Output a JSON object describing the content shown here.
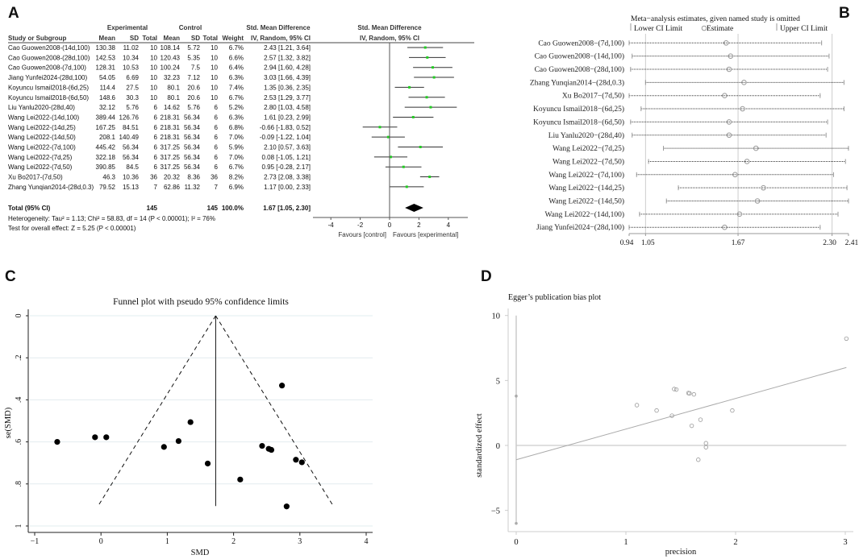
{
  "panels": {
    "a": "A",
    "b": "B",
    "c": "C",
    "d": "D"
  },
  "chart_data": [
    {
      "type": "forest",
      "headers": {
        "group_experimental": "Experimental",
        "group_control": "Control",
        "group_smd": "Std. Mean Difference",
        "study": "Study or Subgroup",
        "mean": "Mean",
        "sd": "SD",
        "total": "Total",
        "weight": "Weight",
        "method": "IV, Random, 95% CI",
        "plot_title": "Std. Mean Difference",
        "plot_method": "IV, Random, 95% CI"
      },
      "studies": [
        {
          "study": "Cao Guowen2008-(14d,100)",
          "e_mean": "130.38",
          "e_sd": "11.02",
          "e_n": "10",
          "c_mean": "108.14",
          "c_sd": "5.72",
          "c_n": "10",
          "weight": "6.7%",
          "ci_text": "2.43 [1.21, 3.64]",
          "est": 2.43,
          "lo": 1.21,
          "hi": 3.64
        },
        {
          "study": "Cao Guowen2008-(28d,100)",
          "e_mean": "142.53",
          "e_sd": "10.34",
          "e_n": "10",
          "c_mean": "120.43",
          "c_sd": "5.35",
          "c_n": "10",
          "weight": "6.6%",
          "ci_text": "2.57 [1.32, 3.82]",
          "est": 2.57,
          "lo": 1.32,
          "hi": 3.82
        },
        {
          "study": "Cao Guowen2008-(7d,100)",
          "e_mean": "128.31",
          "e_sd": "10.53",
          "e_n": "10",
          "c_mean": "100.24",
          "c_sd": "7.5",
          "c_n": "10",
          "weight": "6.4%",
          "ci_text": "2.94 [1.60, 4.28]",
          "est": 2.94,
          "lo": 1.6,
          "hi": 4.28
        },
        {
          "study": "Jiang Yunfei2024-(28d,100)",
          "e_mean": "54.05",
          "e_sd": "6.69",
          "e_n": "10",
          "c_mean": "32.23",
          "c_sd": "7.12",
          "c_n": "10",
          "weight": "6.3%",
          "ci_text": "3.03 [1.66, 4.39]",
          "est": 3.03,
          "lo": 1.66,
          "hi": 4.39
        },
        {
          "study": "Koyuncu Ismail2018-(6d,25)",
          "e_mean": "114.4",
          "e_sd": "27.5",
          "e_n": "10",
          "c_mean": "80.1",
          "c_sd": "20.6",
          "c_n": "10",
          "weight": "7.4%",
          "ci_text": "1.35 [0.36, 2.35]",
          "est": 1.35,
          "lo": 0.36,
          "hi": 2.35
        },
        {
          "study": "Koyuncu Ismail2018-(6d,50)",
          "e_mean": "148.6",
          "e_sd": "30.3",
          "e_n": "10",
          "c_mean": "80.1",
          "c_sd": "20.6",
          "c_n": "10",
          "weight": "6.7%",
          "ci_text": "2.53 [1.29, 3.77]",
          "est": 2.53,
          "lo": 1.29,
          "hi": 3.77
        },
        {
          "study": "Liu Yanlu2020-(28d,40)",
          "e_mean": "32.12",
          "e_sd": "5.76",
          "e_n": "6",
          "c_mean": "14.62",
          "c_sd": "5.76",
          "c_n": "6",
          "weight": "5.2%",
          "ci_text": "2.80 [1.03, 4.58]",
          "est": 2.8,
          "lo": 1.03,
          "hi": 4.58
        },
        {
          "study": "Wang Lei2022-(14d,100)",
          "e_mean": "389.44",
          "e_sd": "126.76",
          "e_n": "6",
          "c_mean": "218.31",
          "c_sd": "56.34",
          "c_n": "6",
          "weight": "6.3%",
          "ci_text": "1.61 [0.23, 2.99]",
          "est": 1.61,
          "lo": 0.23,
          "hi": 2.99
        },
        {
          "study": "Wang Lei2022-(14d,25)",
          "e_mean": "167.25",
          "e_sd": "84.51",
          "e_n": "6",
          "c_mean": "218.31",
          "c_sd": "56.34",
          "c_n": "6",
          "weight": "6.8%",
          "ci_text": "-0.66 [-1.83, 0.52]",
          "est": -0.66,
          "lo": -1.83,
          "hi": 0.52
        },
        {
          "study": "Wang Lei2022-(14d,50)",
          "e_mean": "208.1",
          "e_sd": "140.49",
          "e_n": "6",
          "c_mean": "218.31",
          "c_sd": "56.34",
          "c_n": "6",
          "weight": "7.0%",
          "ci_text": "-0.09 [-1.22, 1.04]",
          "est": -0.09,
          "lo": -1.22,
          "hi": 1.04
        },
        {
          "study": "Wang Lei2022-(7d,100)",
          "e_mean": "445.42",
          "e_sd": "56.34",
          "e_n": "6",
          "c_mean": "317.25",
          "c_sd": "56.34",
          "c_n": "6",
          "weight": "5.9%",
          "ci_text": "2.10 [0.57, 3.63]",
          "est": 2.1,
          "lo": 0.57,
          "hi": 3.63
        },
        {
          "study": "Wang Lei2022-(7d,25)",
          "e_mean": "322.18",
          "e_sd": "56.34",
          "e_n": "6",
          "c_mean": "317.25",
          "c_sd": "56.34",
          "c_n": "6",
          "weight": "7.0%",
          "ci_text": "0.08 [-1.05, 1.21]",
          "est": 0.08,
          "lo": -1.05,
          "hi": 1.21
        },
        {
          "study": "Wang Lei2022-(7d,50)",
          "e_mean": "390.85",
          "e_sd": "84.5",
          "e_n": "6",
          "c_mean": "317.25",
          "c_sd": "56.34",
          "c_n": "6",
          "weight": "6.7%",
          "ci_text": "0.95 [-0.28, 2.17]",
          "est": 0.95,
          "lo": -0.28,
          "hi": 2.17
        },
        {
          "study": "Xu Bo2017-(7d,50)",
          "e_mean": "46.3",
          "e_sd": "10.36",
          "e_n": "36",
          "c_mean": "20.32",
          "c_sd": "8.36",
          "c_n": "36",
          "weight": "8.2%",
          "ci_text": "2.73 [2.08, 3.38]",
          "est": 2.73,
          "lo": 2.08,
          "hi": 3.38
        },
        {
          "study": "Zhang Yunqian2014-(28d,0.3)",
          "e_mean": "79.52",
          "e_sd": "15.13",
          "e_n": "7",
          "c_mean": "62.86",
          "c_sd": "11.32",
          "c_n": "7",
          "weight": "6.9%",
          "ci_text": "1.17 [0.00, 2.33]",
          "est": 1.17,
          "lo": 0.0,
          "hi": 2.33
        }
      ],
      "total": {
        "label": "Total (95% CI)",
        "e_n": "145",
        "c_n": "145",
        "weight": "100.0%",
        "ci_text": "1.67 [1.05, 2.30]",
        "est": 1.67,
        "lo": 1.05,
        "hi": 2.3
      },
      "heterogeneity": "Heterogeneity: Tau² = 1.13; Chi² = 58.83, df = 14 (P < 0.00001); I² = 76%",
      "overall_test": "Test for overall effect: Z = 5.25 (P < 0.00001)",
      "xticks": [
        "-4",
        "-2",
        "0",
        "2",
        "4"
      ],
      "xlim": [
        -5.3,
        5.3
      ],
      "favours_left": "Favours [control]",
      "favours_right": "Favours [experimental]",
      "marker_color": "#22cc22"
    },
    {
      "type": "sensitivity",
      "title": "Meta−analysis estimates, given named study is omitted",
      "legend": {
        "lower": "Lower CI Limit",
        "estimate": "Estimate",
        "upper": "Upper CI Limit"
      },
      "xticks": [
        "0.94",
        "1.05",
        "1.67",
        "2.30",
        "2.41"
      ],
      "xlim": [
        0.94,
        2.41
      ],
      "gridlines": [
        1.05,
        1.67,
        2.3
      ],
      "rows": [
        {
          "study": "Cao Guowen2008−(7d,100)",
          "lo": 0.94,
          "est": 1.59,
          "hi": 2.23
        },
        {
          "study": "Cao Guowen2008−(14d,100)",
          "lo": 0.96,
          "est": 1.62,
          "hi": 2.28
        },
        {
          "study": "Cao Guowen2008−(28d,100)",
          "lo": 0.95,
          "est": 1.61,
          "hi": 2.27
        },
        {
          "study": "Zhang Yunqian2014−(28d,0.3)",
          "lo": 1.05,
          "est": 1.71,
          "hi": 2.38
        },
        {
          "study": "Xu Bo2017−(7d,50)",
          "lo": 0.94,
          "est": 1.58,
          "hi": 2.22
        },
        {
          "study": "Koyuncu Ismail2018−(6d,25)",
          "lo": 1.02,
          "est": 1.7,
          "hi": 2.38
        },
        {
          "study": "Koyuncu Ismail2018−(6d,50)",
          "lo": 0.95,
          "est": 1.61,
          "hi": 2.27
        },
        {
          "study": "Liu Yanlu2020−(28d,40)",
          "lo": 0.96,
          "est": 1.61,
          "hi": 2.26
        },
        {
          "study": "Wang Lei2022−(7d,25)",
          "lo": 1.17,
          "est": 1.79,
          "hi": 2.41
        },
        {
          "study": "Wang Lei2022−(7d,50)",
          "lo": 1.07,
          "est": 1.73,
          "hi": 2.39
        },
        {
          "study": "Wang Lei2022−(7d,100)",
          "lo": 0.99,
          "est": 1.65,
          "hi": 2.31
        },
        {
          "study": "Wang Lei2022−(14d,25)",
          "lo": 1.27,
          "est": 1.84,
          "hi": 2.4
        },
        {
          "study": "Wang Lei2022−(14d,50)",
          "lo": 1.19,
          "est": 1.8,
          "hi": 2.41
        },
        {
          "study": "Wang Lei2022−(14d,100)",
          "lo": 1.01,
          "est": 1.68,
          "hi": 2.34
        },
        {
          "study": "Jiang Yunfei2024−(28d,100)",
          "lo": 0.94,
          "est": 1.58,
          "hi": 2.22
        }
      ]
    },
    {
      "type": "scatter",
      "title": "Funnel plot with pseudo 95% confidence limits",
      "xlabel": "SMD",
      "ylabel": "se(SMD)",
      "xlim": [
        -1.1,
        4.35
      ],
      "ylim": [
        0,
        1.03
      ],
      "y_reversed": true,
      "xticks": [
        {
          "v": -1,
          "label": "−1"
        },
        {
          "v": 0,
          "label": "0"
        },
        {
          "v": 1,
          "label": "1"
        },
        {
          "v": 2,
          "label": "2"
        },
        {
          "v": 3,
          "label": "3"
        },
        {
          "v": 4,
          "label": "4"
        }
      ],
      "yticks": [
        {
          "v": 0,
          "label": "0"
        },
        {
          "v": 0.2,
          "label": ".2"
        },
        {
          "v": 0.4,
          "label": ".4"
        },
        {
          "v": 0.6,
          "label": ".6"
        },
        {
          "v": 0.8,
          "label": ".8"
        },
        {
          "v": 1,
          "label": "1"
        }
      ],
      "grid": true,
      "pooled_smd": 1.73,
      "funnel_max_se": 0.905,
      "points": [
        {
          "x": -0.66,
          "y": 0.6
        },
        {
          "x": -0.09,
          "y": 0.578
        },
        {
          "x": 0.08,
          "y": 0.578
        },
        {
          "x": 0.95,
          "y": 0.624
        },
        {
          "x": 1.17,
          "y": 0.596
        },
        {
          "x": 1.35,
          "y": 0.506
        },
        {
          "x": 1.61,
          "y": 0.703
        },
        {
          "x": 2.1,
          "y": 0.779
        },
        {
          "x": 2.43,
          "y": 0.619
        },
        {
          "x": 2.53,
          "y": 0.633
        },
        {
          "x": 2.57,
          "y": 0.638
        },
        {
          "x": 2.73,
          "y": 0.332
        },
        {
          "x": 2.8,
          "y": 0.907
        },
        {
          "x": 2.94,
          "y": 0.685
        },
        {
          "x": 3.03,
          "y": 0.697
        }
      ]
    },
    {
      "type": "scatter",
      "title": "Egger’s publication bias plot",
      "xlabel": "precision",
      "ylabel": "standardized effect",
      "xlim": [
        -0.07,
        3.08
      ],
      "ylim": [
        -6.6,
        10.6
      ],
      "xticks": [
        {
          "v": 0,
          "label": "0"
        },
        {
          "v": 1,
          "label": "1"
        },
        {
          "v": 2,
          "label": "2"
        },
        {
          "v": 3,
          "label": "3"
        }
      ],
      "yticks": [
        {
          "v": -5,
          "label": "−5"
        },
        {
          "v": 0,
          "label": "0"
        },
        {
          "v": 5,
          "label": "5"
        },
        {
          "v": 10,
          "label": "10"
        }
      ],
      "regression": {
        "intercept": -1.1,
        "x_end": 3.01,
        "y_end": 6.0
      },
      "intercept_ci": [
        -6.0,
        3.8
      ],
      "points": [
        {
          "x": 1.1,
          "y": 3.1
        },
        {
          "x": 1.28,
          "y": 2.69
        },
        {
          "x": 1.42,
          "y": 2.29
        },
        {
          "x": 1.44,
          "y": 4.34
        },
        {
          "x": 1.46,
          "y": 4.3
        },
        {
          "x": 1.57,
          "y": 4.03
        },
        {
          "x": 1.58,
          "y": 4.01
        },
        {
          "x": 1.62,
          "y": 3.93
        },
        {
          "x": 1.6,
          "y": 1.51
        },
        {
          "x": 1.68,
          "y": 1.98
        },
        {
          "x": 1.73,
          "y": 0.17
        },
        {
          "x": 1.73,
          "y": -0.14
        },
        {
          "x": 1.66,
          "y": -1.1
        },
        {
          "x": 1.97,
          "y": 2.69
        },
        {
          "x": 3.01,
          "y": 8.22
        }
      ]
    }
  ]
}
